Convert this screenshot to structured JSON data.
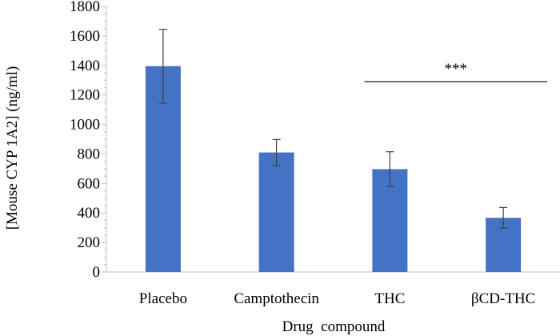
{
  "chart_data": {
    "type": "bar",
    "categories": [
      "Placebo",
      "Camptothecin",
      "THC",
      "βCD-THC"
    ],
    "values": [
      1395,
      810,
      697,
      367
    ],
    "error": [
      250,
      88,
      118,
      70
    ],
    "ylim": [
      0,
      1800
    ],
    "yticks": [
      0,
      200,
      400,
      600,
      800,
      1000,
      1200,
      1400,
      1600,
      1800
    ],
    "xlabel": "Drug  compound",
    "ylabel": "[Mouse CYP 1A2] (ng/ml)",
    "annotation": {
      "text": "***",
      "from": "THC",
      "to": "βCD-THC",
      "level": 1290
    },
    "grid": false,
    "bar_color": "#4472c4",
    "error_color": "#404040",
    "axis_color": "#bfbfbf"
  }
}
